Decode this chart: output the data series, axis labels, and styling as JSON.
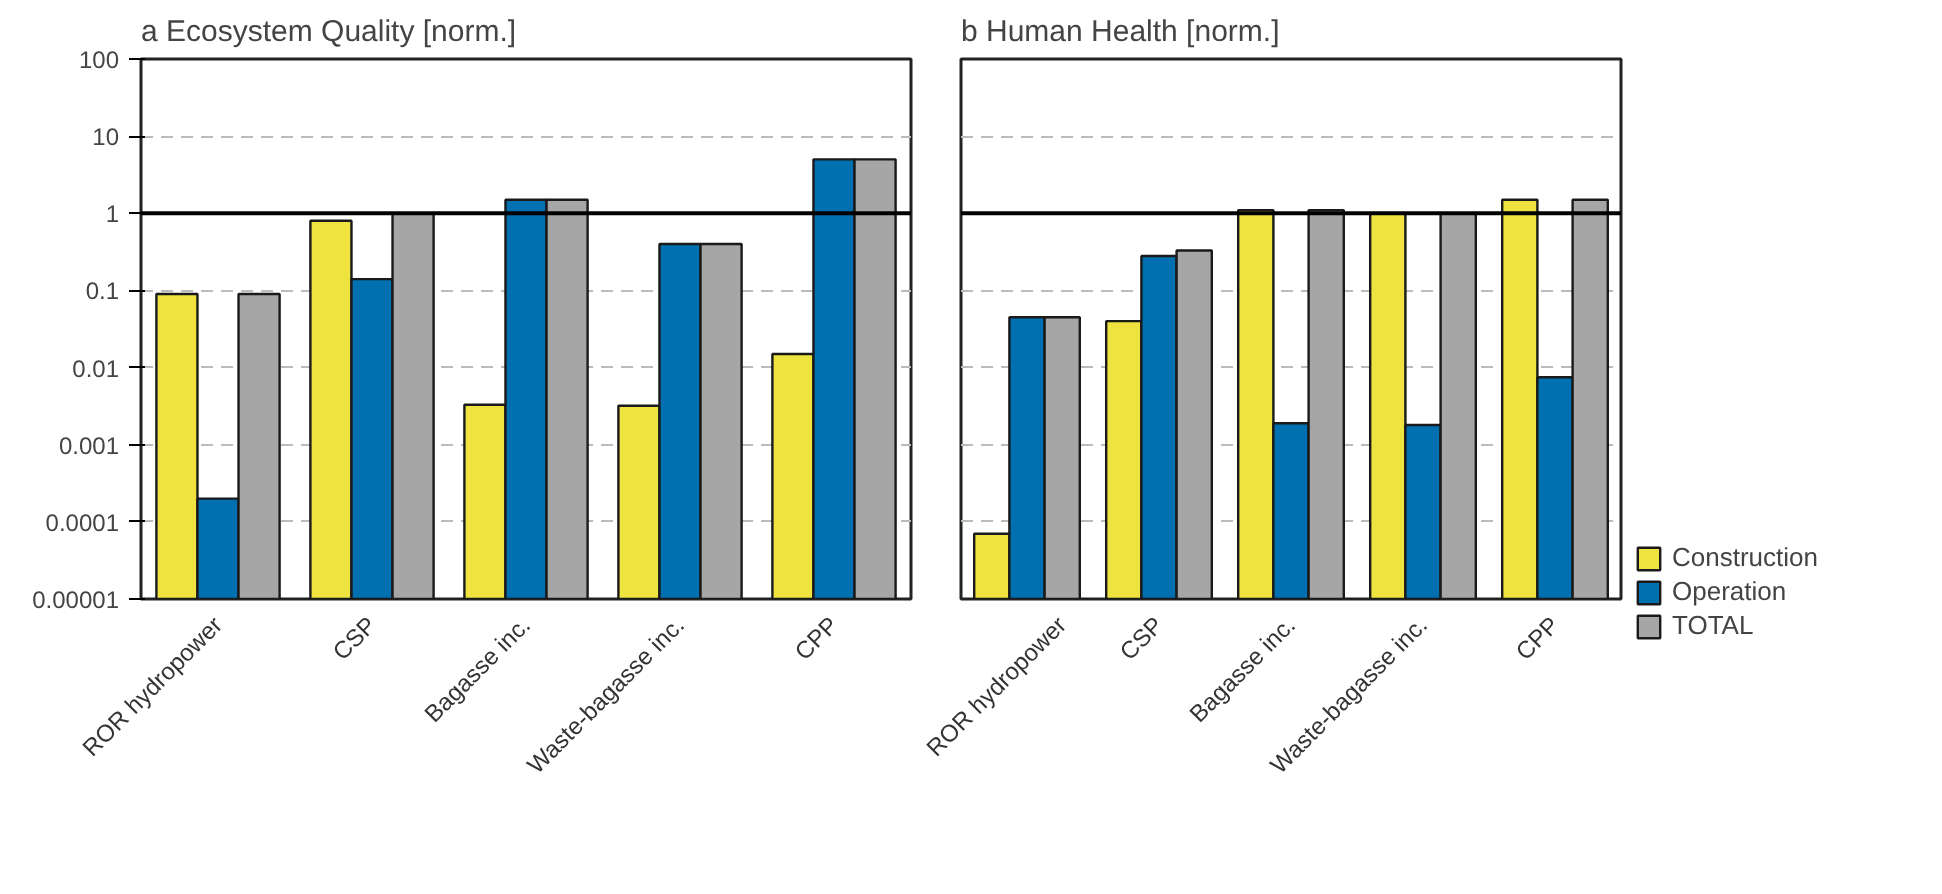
{
  "chart_data": [
    {
      "type": "bar",
      "title": "a Ecosystem Quality [norm.]",
      "categories": [
        "ROR hydropower",
        "CSP",
        "Bagasse inc.",
        "Waste-bagasse inc.",
        "CPP"
      ],
      "series": [
        {
          "color": "#efe43f",
          "values": [
            0.09,
            0.8,
            0.0033,
            0.0032,
            0.015
          ]
        },
        {
          "color": "#0070b0",
          "values": [
            0.0002,
            0.14,
            1.5,
            0.4,
            5.0
          ]
        },
        {
          "color": "#a6a6a6",
          "values": [
            0.09,
            1.0,
            1.5,
            0.4,
            5.0
          ]
        }
      ],
      "log": "y",
      "ylim": [
        1e-05,
        100
      ],
      "yticks": [
        {
          "value": 1e-05,
          "label": "0.00001"
        },
        0.0001,
        0.001,
        0.01,
        0.1,
        1,
        10,
        100
      ],
      "grid": "y",
      "ref_lines": [
        {
          "axis": "y",
          "value": 1,
          "color": "#000000",
          "line_style": "solid"
        }
      ]
    },
    {
      "type": "bar",
      "title": "b Human Health [norm.]",
      "categories": [
        "ROR hydropower",
        "CSP",
        "Bagasse inc.",
        "Waste-bagasse inc.",
        "CPP"
      ],
      "series": [
        {
          "name": "Construction",
          "color": "#efe43f",
          "values": [
            7e-05,
            0.04,
            1.1,
            1.0,
            1.5
          ]
        },
        {
          "name": "Operation",
          "color": "#0070b0",
          "values": [
            0.045,
            0.28,
            0.0019,
            0.0018,
            0.0075
          ]
        },
        {
          "name": "TOTAL",
          "color": "#a6a6a6",
          "values": [
            0.045,
            0.33,
            1.1,
            1.0,
            1.5
          ]
        }
      ],
      "log": "y",
      "ylim": [
        1e-05,
        100
      ],
      "yticks": [
        1e-05,
        0.0001,
        0.001,
        0.01,
        0.1,
        1,
        10,
        100
      ],
      "grid": "y",
      "tick_labels": "x",
      "legend": "bottom right",
      "ref_lines": [
        {
          "axis": "y",
          "value": 1,
          "color": "#000000",
          "line_style": "solid"
        }
      ]
    }
  ]
}
